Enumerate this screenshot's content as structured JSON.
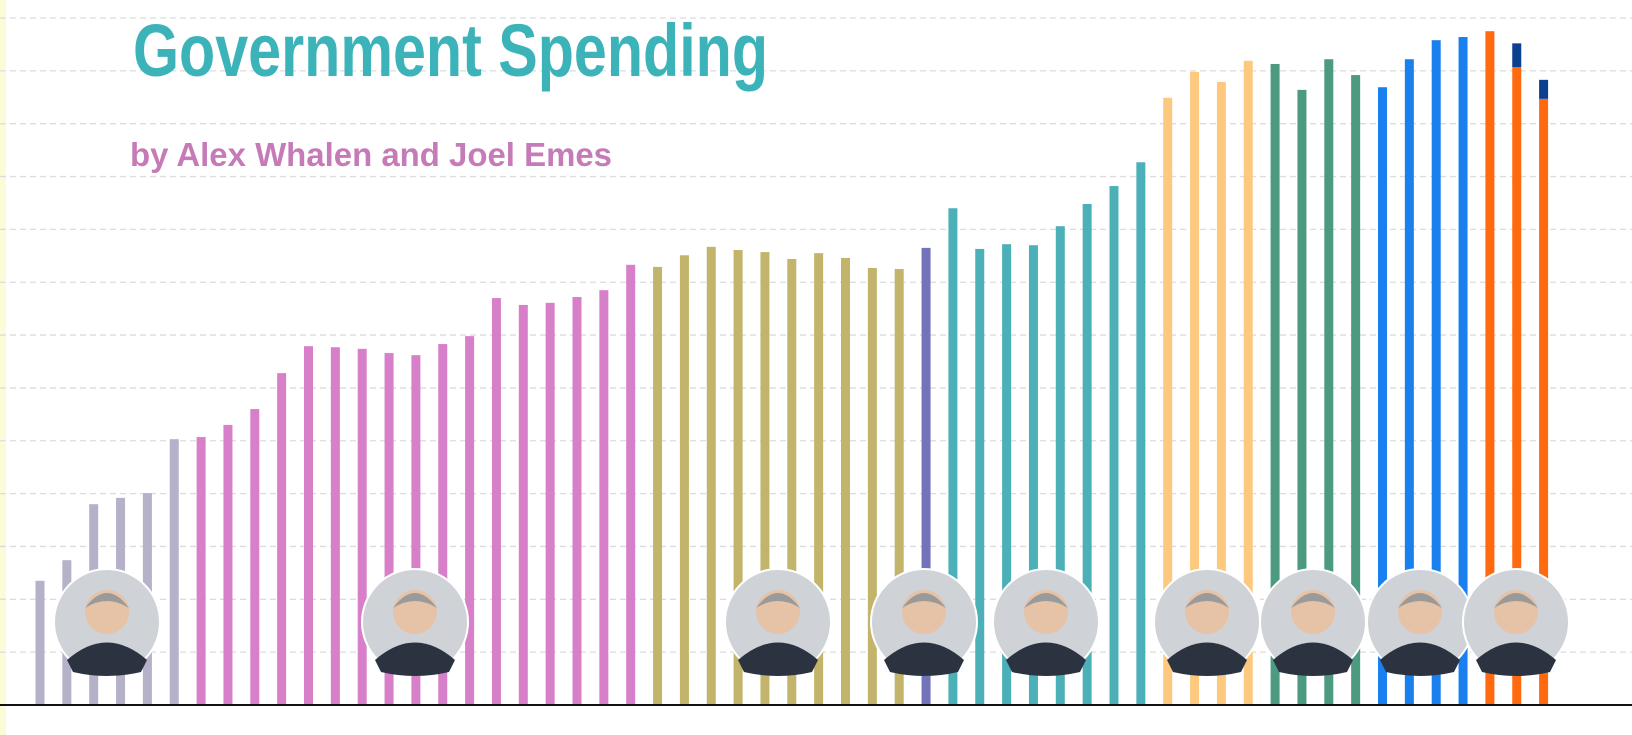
{
  "chart_data": {
    "type": "bar",
    "title": "Government Spending",
    "subtitle": "by Alex Whalen  and Joel Emes",
    "categories": [
      null,
      null,
      null,
      null,
      null,
      null,
      null,
      null,
      null,
      null,
      null,
      null,
      null,
      null,
      null,
      null,
      null,
      null,
      null,
      null,
      null,
      null,
      null,
      null,
      null,
      null,
      null,
      null,
      null,
      null,
      null,
      null,
      null,
      null,
      null,
      null,
      null,
      null,
      null,
      null,
      null,
      null,
      null,
      null,
      null,
      null,
      null,
      null,
      null,
      null,
      null,
      null,
      null,
      null,
      null,
      null,
      null
    ],
    "series": [
      {
        "colors": [
          "#b4b1c9",
          "#b4b1c9",
          "#b4b1c9",
          "#b4b1c9",
          "#b4b1c9",
          "#b4b1c9",
          "#d77fc8",
          "#d77fc8",
          "#d77fc8",
          "#d77fc8",
          "#d77fc8",
          "#d77fc8",
          "#d77fc8",
          "#d77fc8",
          "#d77fc8",
          "#d77fc8",
          "#d77fc8",
          "#d77fc8",
          "#d77fc8",
          "#d77fc8",
          "#d77fc8",
          "#d77fc8",
          "#d77fc8",
          "#c2b46a",
          "#c2b46a",
          "#c2b46a",
          "#c2b46a",
          "#c2b46a",
          "#c2b46a",
          "#c2b46a",
          "#c2b46a",
          "#c2b46a",
          "#c2b46a",
          "#7373b9",
          "#4cb0b8",
          "#4cb0b8",
          "#4cb0b8",
          "#4cb0b8",
          "#4cb0b8",
          "#4cb0b8",
          "#4cb0b8",
          "#4cb0b8",
          "#fdc97f",
          "#fdc97f",
          "#fdc97f",
          "#fdc97f",
          "#4c9a80",
          "#4c9a80",
          "#4c9a80",
          "#4c9a80",
          "#1a80f0",
          "#1a80f0",
          "#1a80f0",
          "#1a80f0",
          "#ff6a0e",
          "#ff6a0e",
          "#ff6a0e"
        ],
        "values": [
          2.35,
          2.74,
          3.8,
          3.92,
          4.01,
          5.03,
          5.07,
          5.3,
          5.6,
          6.28,
          6.79,
          6.77,
          6.74,
          6.66,
          6.62,
          6.83,
          6.98,
          7.7,
          7.57,
          7.61,
          7.72,
          7.85,
          8.33,
          8.29,
          8.51,
          8.67,
          8.61,
          8.57,
          8.44,
          8.55,
          8.46,
          8.27,
          8.25,
          8.65,
          9.4,
          8.63,
          8.72,
          8.7,
          9.06,
          9.48,
          9.82,
          10.27,
          11.49,
          11.98,
          11.79,
          12.19,
          12.13,
          11.64,
          12.22,
          11.92,
          11.69,
          12.22,
          12.58,
          12.64,
          12.75,
          12.07,
          11.47
        ]
      },
      {
        "color": "#0b3f8f",
        "values": [
          null,
          null,
          null,
          null,
          null,
          null,
          null,
          null,
          null,
          null,
          null,
          null,
          null,
          null,
          null,
          null,
          null,
          null,
          null,
          null,
          null,
          null,
          null,
          null,
          null,
          null,
          null,
          null,
          null,
          null,
          null,
          null,
          null,
          null,
          null,
          null,
          null,
          null,
          null,
          null,
          null,
          null,
          null,
          null,
          null,
          null,
          null,
          null,
          null,
          null,
          null,
          null,
          null,
          null,
          null,
          0.45,
          0.36
        ]
      }
    ],
    "ylim": [
      0,
      13
    ],
    "yticks": [
      1,
      2,
      3,
      4,
      5,
      6,
      7,
      8,
      9,
      10,
      11,
      12,
      13
    ],
    "grid": true
  }
}
